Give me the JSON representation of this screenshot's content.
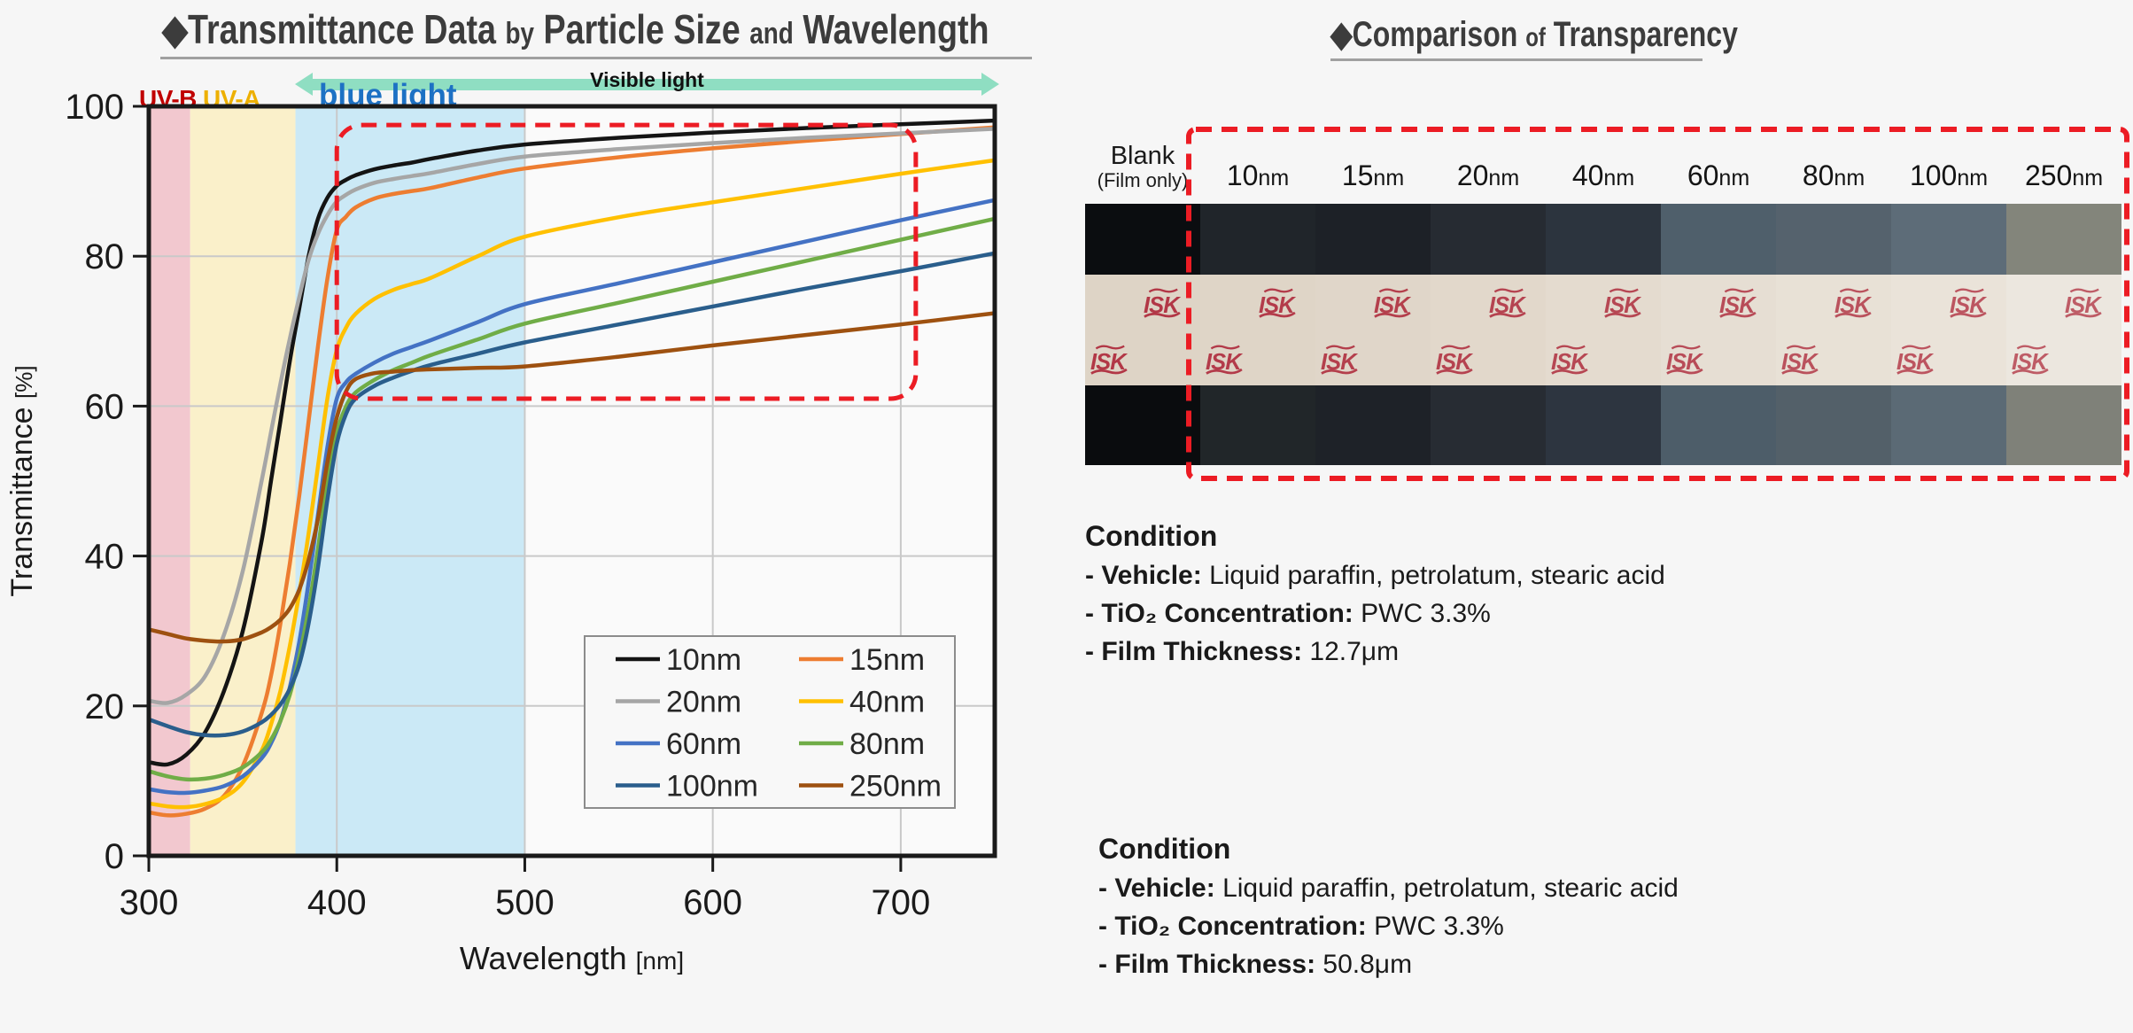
{
  "left_title": {
    "diamond": "◆",
    "main1": "Transmittance Data",
    "small1": "by",
    "main2": "Particle Size",
    "small2": "and",
    "main3": "Wavelength"
  },
  "right_title": {
    "diamond": "◆",
    "main1": "Comparison",
    "small1": "of",
    "main2": "Transparency"
  },
  "annotations": {
    "visible_light": "Visible light",
    "blue_light": "blue light",
    "uv_b": "UV-B",
    "uv_a": "UV-A",
    "uv_b_color": "#c00000",
    "uv_a_color": "#edb000"
  },
  "chart_data": {
    "type": "line",
    "title": "Transmittance Data by Particle Size and Wavelength",
    "xlabel": "Wavelength",
    "xlabel_unit": "[nm]",
    "ylabel": "Transmittance",
    "ylabel_unit": "[%]",
    "xlim": [
      300,
      750
    ],
    "ylim": [
      0,
      100
    ],
    "xticks": [
      300,
      400,
      500,
      600,
      700
    ],
    "yticks": [
      0,
      20,
      40,
      60,
      80,
      100
    ],
    "grid": true,
    "legend_position": "inside lower right",
    "bands": [
      {
        "name": "UV-B",
        "from": 300,
        "to": 322,
        "color": "#f2c8cf"
      },
      {
        "name": "UV-A",
        "from": 322,
        "to": 378,
        "color": "#faf0ca"
      },
      {
        "name": "blue light",
        "from": 378,
        "to": 500,
        "color": "#cbe9f6"
      }
    ],
    "highlight_box": {
      "x": [
        400,
        708
      ],
      "y": [
        61,
        97.5
      ],
      "color": "#ec1c24"
    },
    "x": [
      300,
      310,
      320,
      330,
      340,
      350,
      360,
      365,
      370,
      375,
      380,
      385,
      390,
      395,
      400,
      405,
      410,
      420,
      430,
      440,
      450,
      475,
      500,
      550,
      600,
      650,
      700,
      750
    ],
    "series": [
      {
        "name": "10nm",
        "color": "#141414",
        "values": [
          12.5,
          12.2,
          13.5,
          16.5,
          22,
          30,
          42,
          50,
          58,
          66,
          73,
          80,
          85,
          87.8,
          89.4,
          90.2,
          90.8,
          91.6,
          92.1,
          92.5,
          93,
          94.1,
          94.9,
          95.8,
          96.5,
          97.1,
          97.6,
          98.1
        ]
      },
      {
        "name": "15nm",
        "color": "#ED7D31",
        "values": [
          5.8,
          5.4,
          5.6,
          6.3,
          8,
          12,
          19,
          24,
          31,
          39,
          48,
          58,
          68,
          77,
          83.5,
          85.3,
          86.5,
          87.7,
          88.3,
          88.7,
          89.1,
          90.5,
          91.7,
          93.2,
          94.4,
          95.4,
          96.3,
          97.2
        ]
      },
      {
        "name": "20nm",
        "color": "#A6A6A6",
        "values": [
          20.7,
          20.4,
          21.5,
          24,
          29.5,
          38,
          50,
          56.5,
          63,
          69,
          74.5,
          79.5,
          83,
          85.5,
          87.3,
          88.2,
          88.9,
          89.8,
          90.3,
          90.7,
          91.1,
          92.3,
          93.3,
          94.3,
          95.1,
          95.8,
          96.4,
          97
        ]
      },
      {
        "name": "40nm",
        "color": "#FFC000",
        "values": [
          7,
          6.6,
          6.5,
          6.9,
          7.8,
          9.8,
          14,
          17.5,
          22,
          28,
          35,
          43,
          52,
          61,
          67.5,
          70.5,
          72.3,
          74.3,
          75.5,
          76.3,
          77.1,
          80,
          82.6,
          85.2,
          87.2,
          89.1,
          91,
          92.8
        ]
      },
      {
        "name": "60nm",
        "color": "#4472C4",
        "values": [
          8.9,
          8.5,
          8.4,
          8.7,
          9.3,
          10.6,
          13,
          15,
          18,
          22.5,
          28.5,
          36.5,
          45.5,
          54.5,
          61,
          63.2,
          64.3,
          65.8,
          67,
          67.9,
          68.8,
          71.2,
          73.6,
          76.4,
          79.2,
          82,
          84.8,
          87.5
        ]
      },
      {
        "name": "80nm",
        "color": "#70AD47",
        "values": [
          11.3,
          10.6,
          10.2,
          10.3,
          10.8,
          11.8,
          13.8,
          15.5,
          18,
          21.5,
          26.5,
          33,
          41,
          50,
          56.5,
          60,
          61.8,
          63.5,
          64.8,
          65.8,
          66.8,
          68.9,
          71,
          73.8,
          76.6,
          79.4,
          82.2,
          85
        ]
      },
      {
        "name": "100nm",
        "color": "#2A5E8C",
        "values": [
          18.2,
          17.3,
          16.5,
          16.1,
          16.1,
          16.6,
          17.8,
          18.8,
          20.2,
          22.3,
          25.5,
          31,
          38.5,
          47.5,
          55,
          59,
          61,
          62.7,
          63.8,
          64.7,
          65.5,
          67,
          68.5,
          70.9,
          73.3,
          75.7,
          78,
          80.4
        ]
      },
      {
        "name": "250nm",
        "color": "#9E5110",
        "values": [
          30.2,
          29.6,
          29,
          28.7,
          28.6,
          28.9,
          29.8,
          30.5,
          31.5,
          33,
          35.5,
          39.5,
          45,
          52.5,
          58.5,
          62,
          63.6,
          64.4,
          64.6,
          64.8,
          64.9,
          65.1,
          65.3,
          66.6,
          68.1,
          69.5,
          70.9,
          72.4
        ]
      }
    ]
  },
  "comparison": {
    "logo_text": "ISK",
    "logo_color": "#b23746",
    "columns": [
      {
        "label": "Blank",
        "sublabel": "(Film only)",
        "top": "#0b0d10",
        "mid": "#ded4c6",
        "bottom": "#0a0c0e"
      },
      {
        "label": "10",
        "unit": "nm",
        "top": "#20252a",
        "mid": "#dfd5c7",
        "bottom": "#212629"
      },
      {
        "label": "15",
        "unit": "nm",
        "top": "#1d2127",
        "mid": "#e0d6c9",
        "bottom": "#1e2228"
      },
      {
        "label": "20",
        "unit": "nm",
        "top": "#262b32",
        "mid": "#e2d8cb",
        "bottom": "#272c33"
      },
      {
        "label": "40",
        "unit": "nm",
        "top": "#2c343e",
        "mid": "#e4dbcf",
        "bottom": "#2d3540"
      },
      {
        "label": "60",
        "unit": "nm",
        "top": "#4f5f6b",
        "mid": "#e6ded3",
        "bottom": "#4d5d69"
      },
      {
        "label": "80",
        "unit": "nm",
        "top": "#55626d",
        "mid": "#e8e1d6",
        "bottom": "#536069"
      },
      {
        "label": "100",
        "unit": "nm",
        "top": "#5d6c78",
        "mid": "#eae3d9",
        "bottom": "#5b6a75"
      },
      {
        "label": "250",
        "unit": "nm",
        "top": "#83857b",
        "mid": "#ece7df",
        "bottom": "#7f8179"
      }
    ]
  },
  "conditions": [
    {
      "title": "Condition",
      "items": [
        {
          "label": "- Vehicle:",
          "value": "Liquid paraffin, petrolatum, stearic acid"
        },
        {
          "label": "- TiO₂  Concentration:",
          "value": "PWC 3.3%"
        },
        {
          "label": "- Film Thickness:",
          "value": "12.7μm"
        }
      ]
    },
    {
      "title": "Condition",
      "items": [
        {
          "label": "- Vehicle:",
          "value": "Liquid paraffin, petrolatum, stearic acid"
        },
        {
          "label": "- TiO₂  Concentration:",
          "value": "PWC 3.3%"
        },
        {
          "label": "- Film Thickness:",
          "value": "50.8μm"
        }
      ]
    }
  ]
}
